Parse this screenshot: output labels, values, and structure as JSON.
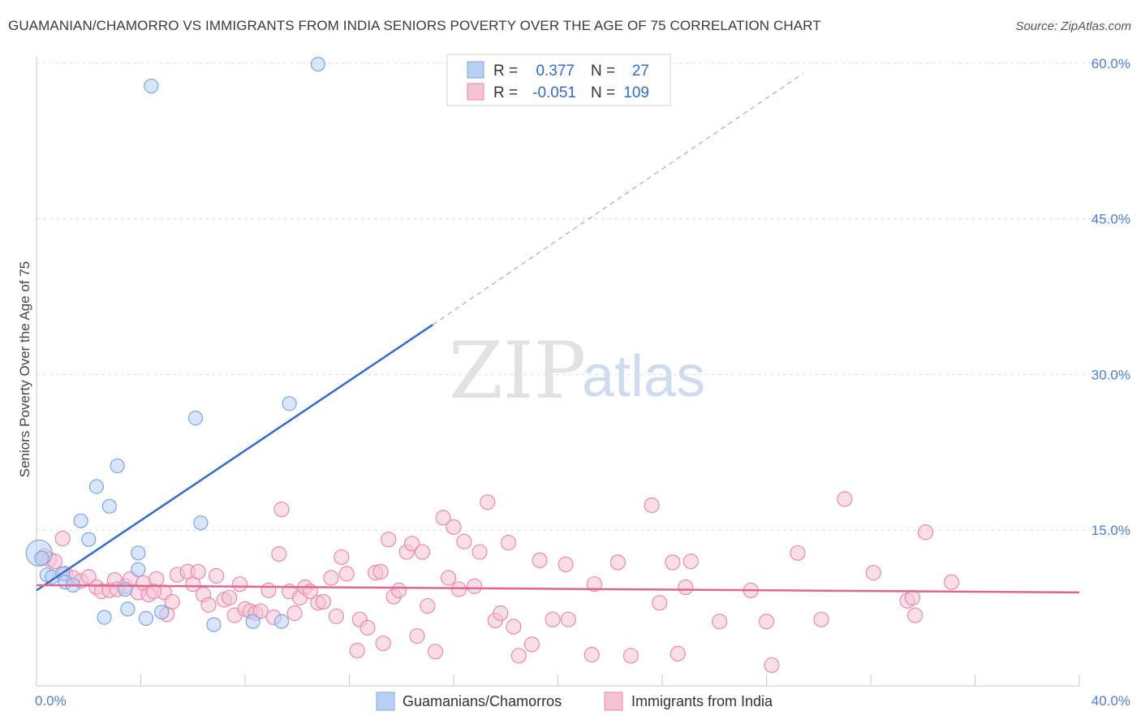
{
  "title": "GUAMANIAN/CHAMORRO VS IMMIGRANTS FROM INDIA SENIORS POVERTY OVER THE AGE OF 75 CORRELATION CHART",
  "source": "Source: ZipAtlas.com",
  "watermark": {
    "zip": "ZIP",
    "atlas": "atlas"
  },
  "colors": {
    "blue": "#7aa6e6",
    "blue_fill": "#b9d0f2",
    "blue_line": "#2f6bd0",
    "pink": "#e98aaa",
    "pink_fill": "#f5c3d4",
    "pink_line": "#e06590",
    "accent_text": "#2f6bd0"
  },
  "legend": {
    "rows": [
      {
        "r_label": "R =",
        "r_value": "0.377",
        "n_label": "N =",
        "n_value": "27"
      },
      {
        "r_label": "R =",
        "r_value": "-0.051",
        "n_label": "N =",
        "n_value": "109"
      }
    ]
  },
  "bottom_legend": [
    "Guamanians/Chamorros",
    "Immigrants from India"
  ],
  "chart_data": {
    "type": "scatter",
    "xlabel": "",
    "ylabel": "Seniors Poverty Over the Age of 75",
    "xlim": [
      0,
      40
    ],
    "ylim": [
      0,
      60
    ],
    "x_tick_labels": [
      "0.0%",
      "40.0%"
    ],
    "y_tick_labels": [
      "15.0%",
      "30.0%",
      "45.0%",
      "60.0%"
    ],
    "y_ticks": [
      15,
      30,
      45,
      60
    ],
    "grid": true,
    "series": [
      {
        "name": "Guamanians/Chamorros",
        "trend": {
          "x0": 0,
          "y0": 9.2,
          "x1": 15.2,
          "y1": 34.8,
          "dashed_to_x": 29.4,
          "dashed_to_y": 59.0
        },
        "points": [
          [
            0.1,
            12.8
          ],
          [
            0.4,
            10.7
          ],
          [
            0.6,
            10.5
          ],
          [
            1.0,
            10.8
          ],
          [
            1.1,
            10.0
          ],
          [
            1.4,
            9.7
          ],
          [
            1.7,
            15.9
          ],
          [
            2.0,
            14.1
          ],
          [
            2.3,
            19.2
          ],
          [
            2.6,
            6.6
          ],
          [
            2.8,
            17.3
          ],
          [
            3.1,
            21.2
          ],
          [
            3.4,
            9.3
          ],
          [
            3.5,
            7.4
          ],
          [
            3.9,
            11.2
          ],
          [
            3.9,
            12.8
          ],
          [
            4.2,
            6.5
          ],
          [
            4.4,
            57.8
          ],
          [
            4.8,
            7.1
          ],
          [
            6.1,
            25.8
          ],
          [
            6.3,
            15.7
          ],
          [
            6.8,
            5.9
          ],
          [
            8.3,
            6.2
          ],
          [
            9.4,
            6.2
          ],
          [
            9.7,
            27.2
          ],
          [
            10.8,
            59.9
          ],
          [
            0.2,
            12.3
          ]
        ]
      },
      {
        "name": "Immigrants from India",
        "trend": {
          "x0": 0,
          "y0": 9.7,
          "x1": 40,
          "y1": 9.0
        },
        "points": [
          [
            0.3,
            12.5
          ],
          [
            0.5,
            12.2
          ],
          [
            0.7,
            12.0
          ],
          [
            1.0,
            14.2
          ],
          [
            1.1,
            10.8
          ],
          [
            1.4,
            10.4
          ],
          [
            1.7,
            10.1
          ],
          [
            2.0,
            10.5
          ],
          [
            2.3,
            9.5
          ],
          [
            2.5,
            9.1
          ],
          [
            2.8,
            9.2
          ],
          [
            3.0,
            10.2
          ],
          [
            3.1,
            9.3
          ],
          [
            3.4,
            9.6
          ],
          [
            3.6,
            10.3
          ],
          [
            3.9,
            9.0
          ],
          [
            4.1,
            9.9
          ],
          [
            4.3,
            8.8
          ],
          [
            4.6,
            10.3
          ],
          [
            4.9,
            9.0
          ],
          [
            5.0,
            6.9
          ],
          [
            5.2,
            8.1
          ],
          [
            5.4,
            10.7
          ],
          [
            5.8,
            11.0
          ],
          [
            6.0,
            9.8
          ],
          [
            6.2,
            11.0
          ],
          [
            6.4,
            8.8
          ],
          [
            6.6,
            7.8
          ],
          [
            6.9,
            10.6
          ],
          [
            7.2,
            8.3
          ],
          [
            7.4,
            8.5
          ],
          [
            7.6,
            6.8
          ],
          [
            7.8,
            9.8
          ],
          [
            8.0,
            7.4
          ],
          [
            8.2,
            7.2
          ],
          [
            8.4,
            7.0
          ],
          [
            8.6,
            7.2
          ],
          [
            8.9,
            9.2
          ],
          [
            9.1,
            6.6
          ],
          [
            9.3,
            12.7
          ],
          [
            9.4,
            17.0
          ],
          [
            9.7,
            9.1
          ],
          [
            9.9,
            7.0
          ],
          [
            10.1,
            8.5
          ],
          [
            10.3,
            9.5
          ],
          [
            10.5,
            9.1
          ],
          [
            10.8,
            8.0
          ],
          [
            11.0,
            8.1
          ],
          [
            11.5,
            6.7
          ],
          [
            11.7,
            12.4
          ],
          [
            11.9,
            10.8
          ],
          [
            12.3,
            3.4
          ],
          [
            12.4,
            6.4
          ],
          [
            12.7,
            5.6
          ],
          [
            13.0,
            10.9
          ],
          [
            13.3,
            4.1
          ],
          [
            13.5,
            14.1
          ],
          [
            13.7,
            8.6
          ],
          [
            13.9,
            9.2
          ],
          [
            14.2,
            12.9
          ],
          [
            14.4,
            13.7
          ],
          [
            14.6,
            4.8
          ],
          [
            14.8,
            12.9
          ],
          [
            15.0,
            7.7
          ],
          [
            15.3,
            3.3
          ],
          [
            15.6,
            16.2
          ],
          [
            15.8,
            10.4
          ],
          [
            16.0,
            15.3
          ],
          [
            16.2,
            9.3
          ],
          [
            16.4,
            13.9
          ],
          [
            16.8,
            9.6
          ],
          [
            17.0,
            12.9
          ],
          [
            17.3,
            17.7
          ],
          [
            17.6,
            6.3
          ],
          [
            17.8,
            7.0
          ],
          [
            18.1,
            13.8
          ],
          [
            18.3,
            5.7
          ],
          [
            18.5,
            2.9
          ],
          [
            19.0,
            4.0
          ],
          [
            19.3,
            12.1
          ],
          [
            19.8,
            6.4
          ],
          [
            20.3,
            11.7
          ],
          [
            20.4,
            6.4
          ],
          [
            21.3,
            3.0
          ],
          [
            22.3,
            11.9
          ],
          [
            22.8,
            2.9
          ],
          [
            23.6,
            17.4
          ],
          [
            23.9,
            8.0
          ],
          [
            24.4,
            11.9
          ],
          [
            24.6,
            3.1
          ],
          [
            24.9,
            9.5
          ],
          [
            25.1,
            12.0
          ],
          [
            27.4,
            9.2
          ],
          [
            28.0,
            6.2
          ],
          [
            28.2,
            2.0
          ],
          [
            29.2,
            12.8
          ],
          [
            30.1,
            6.4
          ],
          [
            31.0,
            18.0
          ],
          [
            32.1,
            10.9
          ],
          [
            33.4,
            8.2
          ],
          [
            33.6,
            8.5
          ],
          [
            33.7,
            6.8
          ],
          [
            34.1,
            14.8
          ],
          [
            35.1,
            10.0
          ],
          [
            11.3,
            10.4
          ],
          [
            13.2,
            11.0
          ],
          [
            21.4,
            9.8
          ],
          [
            26.2,
            6.2
          ],
          [
            4.5,
            9.1
          ]
        ]
      }
    ]
  }
}
